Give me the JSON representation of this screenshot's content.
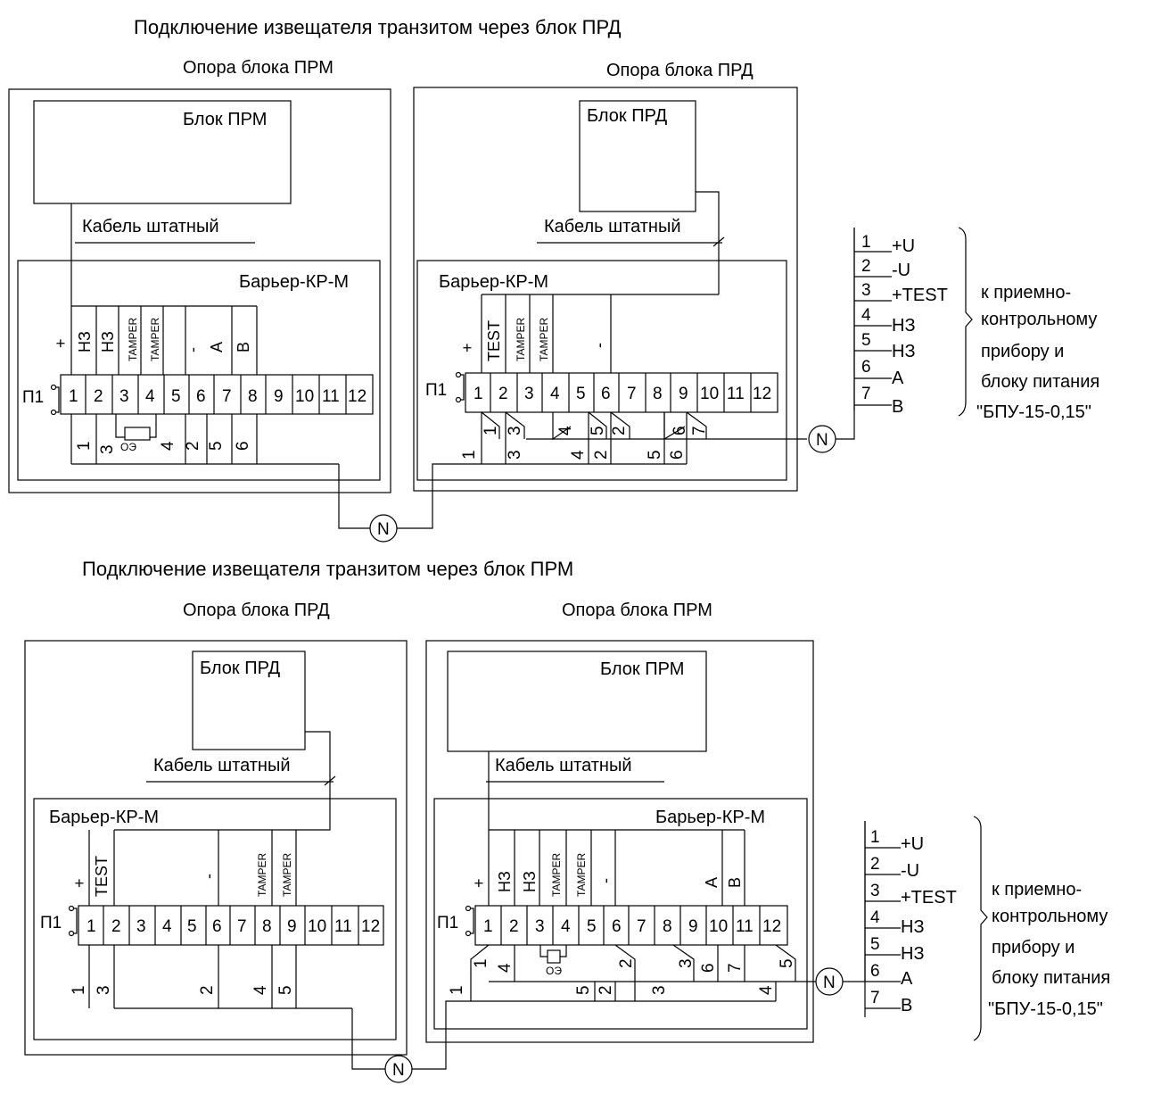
{
  "top": {
    "title": "Подключение  извещателя транзитом через блок ПРД",
    "left_support": "Опора блока ПРМ",
    "right_support": "Опора блока ПРД",
    "left_unit": "Блок ПРМ",
    "right_unit": "Блок ПРД",
    "cable_left": "Кабель штатный",
    "cable_right": "Кабель штатный",
    "barrier_left": "Барьер-КР-М",
    "barrier_right": "Барьер-КР-М",
    "connector": "П1",
    "left_pins": [
      "+",
      "НЗ",
      "НЗ",
      "TAMPER",
      "TAMPER",
      "-",
      "A",
      "B"
    ],
    "right_pins": [
      "+",
      "TEST",
      "TAMPER",
      "TAMPER",
      "-"
    ],
    "oe": "ОЭ",
    "left_wires_a": [
      "1",
      "3"
    ],
    "left_wires_b": [
      "4",
      "2",
      "5",
      "6"
    ],
    "right_wires_a": [
      "1",
      "3",
      "4",
      "5",
      "2",
      "6",
      "7"
    ],
    "right_wires_b": [
      "1",
      "3",
      "4",
      "2",
      "5",
      "6"
    ],
    "node": "N"
  },
  "bottom": {
    "title": "Подключение  извещателя транзитом через блок ПРМ",
    "left_support": "Опора блока ПРД",
    "right_support": "Опора блока ПРМ",
    "left_unit": "Блок ПРД",
    "right_unit": "Блок ПРМ",
    "cable_left": "Кабель штатный",
    "cable_right": "Кабель штатный",
    "barrier_left": "Барьер-КР-М",
    "barrier_right": "Барьер-КР-М",
    "connector": "П1",
    "left_pins": [
      "+",
      "TEST",
      "-",
      "TAMPER",
      "TAMPER"
    ],
    "right_pins": [
      "+",
      "НЗ",
      "НЗ",
      "TAMPER",
      "TAMPER",
      "-",
      "A",
      "B"
    ],
    "oe": "ОЭ",
    "left_wires": [
      "1",
      "3",
      "2",
      "4",
      "5"
    ],
    "right_wires_a": [
      "1",
      "4",
      "2",
      "3",
      "6",
      "7",
      "5"
    ],
    "right_wires_b": [
      "1",
      "5",
      "2",
      "3",
      "4"
    ],
    "node": "N"
  },
  "terminals": [
    "1",
    "2",
    "3",
    "4",
    "5",
    "6",
    "7",
    "8",
    "9",
    "10",
    "11",
    "12"
  ],
  "legend": {
    "wires": [
      {
        "num": "1",
        "sig": "+U"
      },
      {
        "num": "2",
        "sig": " -U"
      },
      {
        "num": "3",
        "sig": "+TEST"
      },
      {
        "num": "4",
        "sig": "НЗ"
      },
      {
        "num": "5",
        "sig": "НЗ"
      },
      {
        "num": "6",
        "sig": "A"
      },
      {
        "num": "7",
        "sig": "B"
      }
    ],
    "dest": [
      "к приемно-",
      "контрольному",
      "прибору и",
      "блоку питания",
      "\"БПУ-15-0,15\""
    ]
  }
}
